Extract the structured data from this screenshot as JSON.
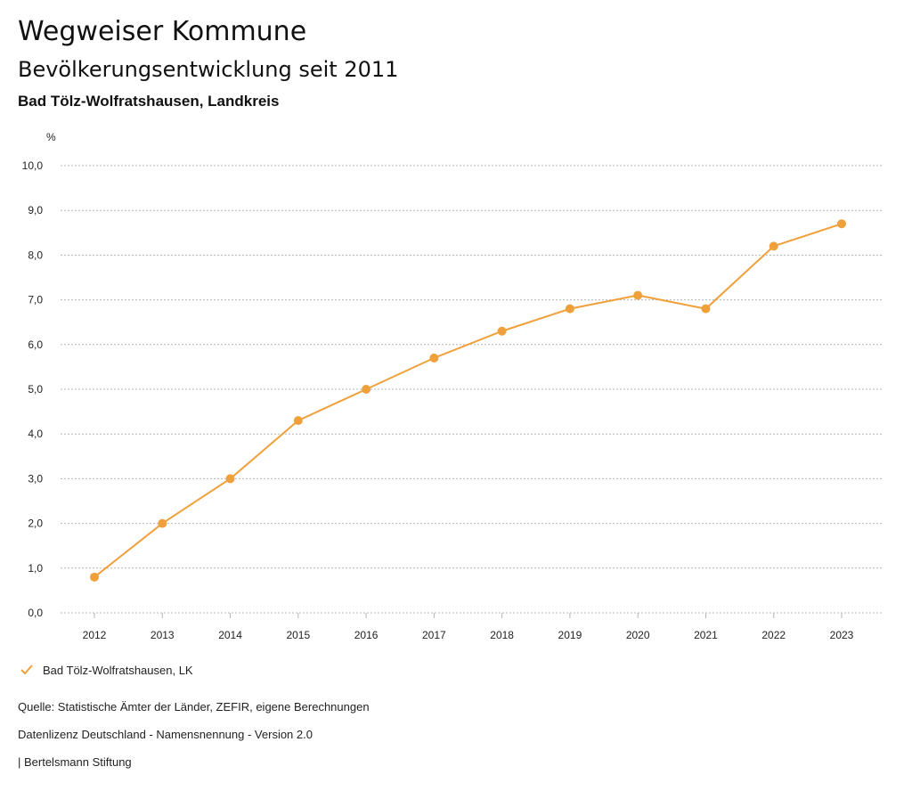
{
  "header": {
    "title": "Wegweiser Kommune",
    "subtitle": "Bevölkerungsentwicklung seit 2011",
    "region": "Bad Tölz-Wolfratshausen, Landkreis"
  },
  "legend": {
    "label": "Bad Tölz-Wolfratshausen, LK",
    "icon": "check-icon"
  },
  "footer": {
    "source": "Quelle: Statistische Ämter der Länder, ZEFIR, eigene Berechnungen",
    "license": "Datenlizenz Deutschland - Namensnennung - Version 2.0",
    "publisher": "| Bertelsmann Stiftung"
  },
  "colors": {
    "series": "#f0a03a",
    "grid": "#b5b5b5"
  },
  "chart_data": {
    "type": "line",
    "title": "Bevölkerungsentwicklung seit 2011",
    "ylabel": "%",
    "xlabel": "",
    "ylim": [
      0,
      10
    ],
    "yticks": [
      "0,0",
      "1,0",
      "2,0",
      "3,0",
      "4,0",
      "5,0",
      "6,0",
      "7,0",
      "8,0",
      "9,0",
      "10,0"
    ],
    "categories": [
      "2012",
      "2013",
      "2014",
      "2015",
      "2016",
      "2017",
      "2018",
      "2019",
      "2020",
      "2021",
      "2022",
      "2023"
    ],
    "series": [
      {
        "name": "Bad Tölz-Wolfratshausen, LK",
        "values": [
          0.8,
          2.0,
          3.0,
          4.3,
          5.0,
          5.7,
          6.3,
          6.8,
          7.1,
          6.8,
          8.2,
          8.7
        ]
      }
    ],
    "grid": true,
    "legend_position": "bottom-left"
  }
}
